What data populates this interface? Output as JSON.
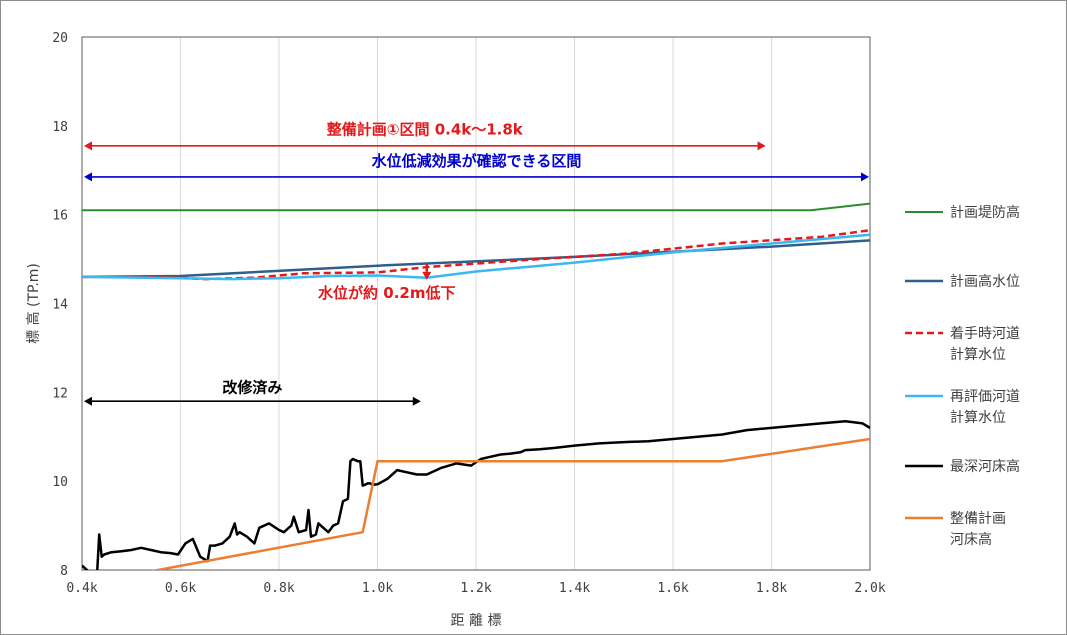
{
  "chart_data": {
    "type": "line",
    "xlabel": "距 離 標",
    "ylabel": "標 高 (TP.m)",
    "xlim": [
      0.4,
      2.0
    ],
    "ylim": [
      8,
      20
    ],
    "x_ticks": [
      0.4,
      0.6,
      0.8,
      1.0,
      1.2,
      1.4,
      1.6,
      1.8,
      2.0
    ],
    "x_tick_labels": [
      "0.4k",
      "0.6k",
      "0.8k",
      "1.0k",
      "1.2k",
      "1.4k",
      "1.6k",
      "1.8k",
      "2.0k"
    ],
    "y_ticks": [
      8,
      10,
      12,
      14,
      16,
      18,
      20
    ],
    "y_tick_labels": [
      "8",
      "10",
      "12",
      "14",
      "16",
      "18",
      "20"
    ],
    "grid": "vertical",
    "legend_position": "right",
    "series": [
      {
        "key": "teibo",
        "name": [
          "計画堤防高"
        ],
        "color": "#2e8b2e",
        "dash": "solid",
        "width": 2,
        "x": [
          0.4,
          1.88,
          2.0
        ],
        "y": [
          16.1,
          16.1,
          16.25
        ]
      },
      {
        "key": "keikaku_kosui",
        "name": [
          "計画高水位"
        ],
        "color": "#2f5f8a",
        "dash": "solid",
        "width": 2.5,
        "x": [
          0.4,
          0.6,
          1.0,
          1.4,
          1.8,
          2.0
        ],
        "y": [
          14.6,
          14.62,
          14.85,
          15.05,
          15.28,
          15.42
        ]
      },
      {
        "key": "chakushu",
        "name": [
          "着手時河道",
          "計算水位"
        ],
        "color": "#e31a1c",
        "dash": "dashed",
        "width": 2.5,
        "x": [
          0.4,
          0.55,
          0.65,
          0.75,
          0.85,
          1.0,
          1.1,
          1.3,
          1.5,
          1.7,
          1.9,
          2.0
        ],
        "y": [
          14.6,
          14.6,
          14.55,
          14.58,
          14.68,
          14.7,
          14.82,
          14.98,
          15.12,
          15.35,
          15.5,
          15.65
        ]
      },
      {
        "key": "saihyoka",
        "name": [
          "再評価河道",
          "計算水位"
        ],
        "color": "#3cb8f0",
        "dash": "solid",
        "width": 2.5,
        "x": [
          0.4,
          0.6,
          0.7,
          0.8,
          0.9,
          1.0,
          1.1,
          1.2,
          1.3,
          1.4,
          1.6,
          1.8,
          2.0
        ],
        "y": [
          14.6,
          14.57,
          14.55,
          14.57,
          14.62,
          14.63,
          14.58,
          14.72,
          14.82,
          14.92,
          15.15,
          15.35,
          15.55
        ]
      },
      {
        "key": "saishin",
        "name": [
          "最深河床高"
        ],
        "color": "#000000",
        "dash": "solid",
        "width": 2.5,
        "x": [
          0.4,
          0.43,
          0.435,
          0.44,
          0.445,
          0.46,
          0.48,
          0.5,
          0.52,
          0.54,
          0.56,
          0.58,
          0.595,
          0.61,
          0.625,
          0.64,
          0.655,
          0.66,
          0.67,
          0.685,
          0.7,
          0.71,
          0.715,
          0.72,
          0.735,
          0.75,
          0.76,
          0.78,
          0.8,
          0.81,
          0.825,
          0.83,
          0.84,
          0.855,
          0.86,
          0.865,
          0.875,
          0.88,
          0.89,
          0.9,
          0.91,
          0.92,
          0.93,
          0.94,
          0.945,
          0.95,
          0.96,
          0.965,
          0.97,
          0.975,
          0.98,
          0.985,
          0.99,
          1.0,
          1.02,
          1.04,
          1.06,
          1.08,
          1.1,
          1.13,
          1.16,
          1.19,
          1.21,
          1.23,
          1.25,
          1.27,
          1.29,
          1.3,
          1.33,
          1.36,
          1.4,
          1.45,
          1.5,
          1.55,
          1.6,
          1.65,
          1.7,
          1.75,
          1.8,
          1.85,
          1.9,
          1.95,
          1.985,
          2.0
        ],
        "y": [
          8.1,
          7.8,
          8.8,
          8.3,
          8.35,
          8.4,
          8.42,
          8.45,
          8.5,
          8.45,
          8.4,
          8.38,
          8.35,
          8.6,
          8.7,
          8.3,
          8.2,
          8.55,
          8.55,
          8.6,
          8.75,
          9.05,
          8.8,
          8.85,
          8.75,
          8.6,
          8.95,
          9.05,
          8.9,
          8.85,
          9.0,
          9.2,
          8.85,
          8.9,
          9.35,
          8.75,
          8.8,
          9.05,
          8.95,
          8.85,
          9.0,
          9.05,
          9.55,
          9.6,
          10.45,
          10.5,
          10.45,
          10.45,
          9.9,
          9.92,
          9.95,
          9.95,
          9.92,
          9.93,
          10.05,
          10.25,
          10.2,
          10.15,
          10.15,
          10.3,
          10.4,
          10.35,
          10.5,
          10.55,
          10.6,
          10.62,
          10.65,
          10.7,
          10.72,
          10.75,
          10.8,
          10.85,
          10.88,
          10.9,
          10.95,
          11.0,
          11.05,
          11.15,
          11.2,
          11.25,
          11.3,
          11.35,
          11.3,
          11.2
        ]
      },
      {
        "key": "seibi_kasho",
        "name": [
          "整備計画",
          "河床高"
        ],
        "color": "#ed7d31",
        "dash": "solid",
        "width": 2.5,
        "x": [
          0.4,
          0.53,
          0.97,
          1.0,
          1.7,
          2.0
        ],
        "y": [
          7.75,
          7.95,
          8.85,
          10.45,
          10.45,
          10.95
        ]
      }
    ],
    "annotations": [
      {
        "key": "seibi_kukan",
        "text": "整備計画①区間 0.4k〜1.8k",
        "color": "#e31a1c",
        "x_from": 0.4,
        "x_to": 1.79,
        "y": 17.55,
        "text_y": 17.8
      },
      {
        "key": "suii_kukan",
        "text": "水位低減効果が確認できる区間",
        "color": "#0000cc",
        "x_from": 0.4,
        "x_to": 2.0,
        "y": 16.85,
        "text_y": 17.1
      },
      {
        "key": "kaishu",
        "text": "改修済み",
        "color": "#000000",
        "x_from": 0.4,
        "x_to": 1.09,
        "y": 11.8,
        "text_y": 12.0
      },
      {
        "key": "teika",
        "text": "水位が約 0.2m低下",
        "color": "#e31a1c",
        "x": 1.1,
        "y_from": 14.9,
        "y_to": 14.6,
        "text_y": 14.12
      }
    ]
  }
}
